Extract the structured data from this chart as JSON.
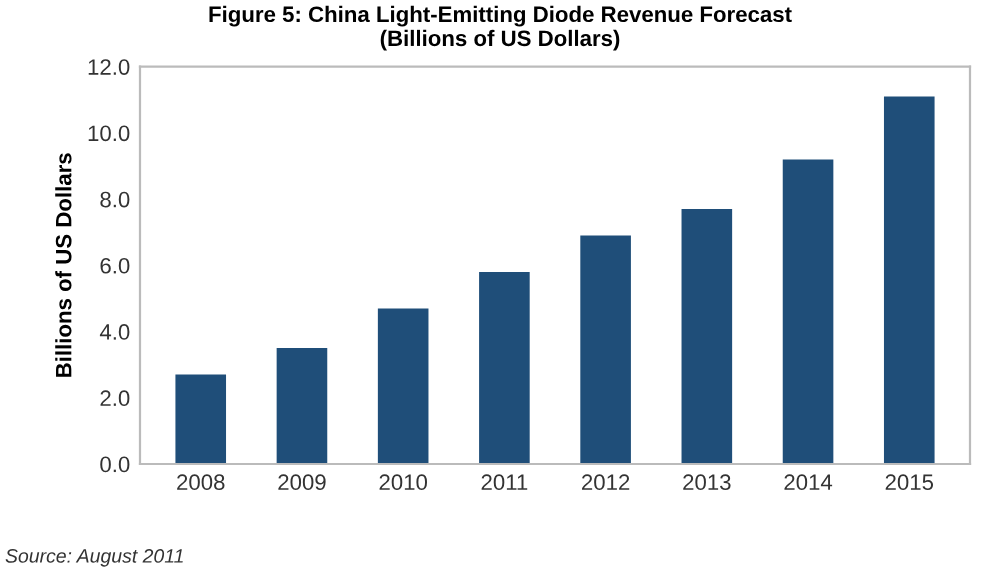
{
  "chart_data": {
    "type": "bar",
    "title": "Figure 5: China Light-Emitting Diode Revenue Forecast\n(Billions of US Dollars)",
    "ylabel": "Billions of US Dollars",
    "categories": [
      "2008",
      "2009",
      "2010",
      "2011",
      "2012",
      "2013",
      "2014",
      "2015"
    ],
    "values": [
      2.7,
      3.5,
      4.7,
      5.8,
      6.9,
      7.7,
      9.2,
      11.1
    ],
    "color": "#1f4e79",
    "ylim": [
      0,
      12
    ],
    "yticks": [
      {
        "value": 0,
        "label": "0.0"
      },
      {
        "value": 2,
        "label": "2.0"
      },
      {
        "value": 4,
        "label": "4.0"
      },
      {
        "value": 6,
        "label": "6.0"
      },
      {
        "value": 8,
        "label": "8.0"
      },
      {
        "value": 10,
        "label": "10.0"
      },
      {
        "value": 12,
        "label": "12.0"
      }
    ],
    "grid": false,
    "legend": false,
    "annotations": [
      "Source: August 2011"
    ]
  }
}
